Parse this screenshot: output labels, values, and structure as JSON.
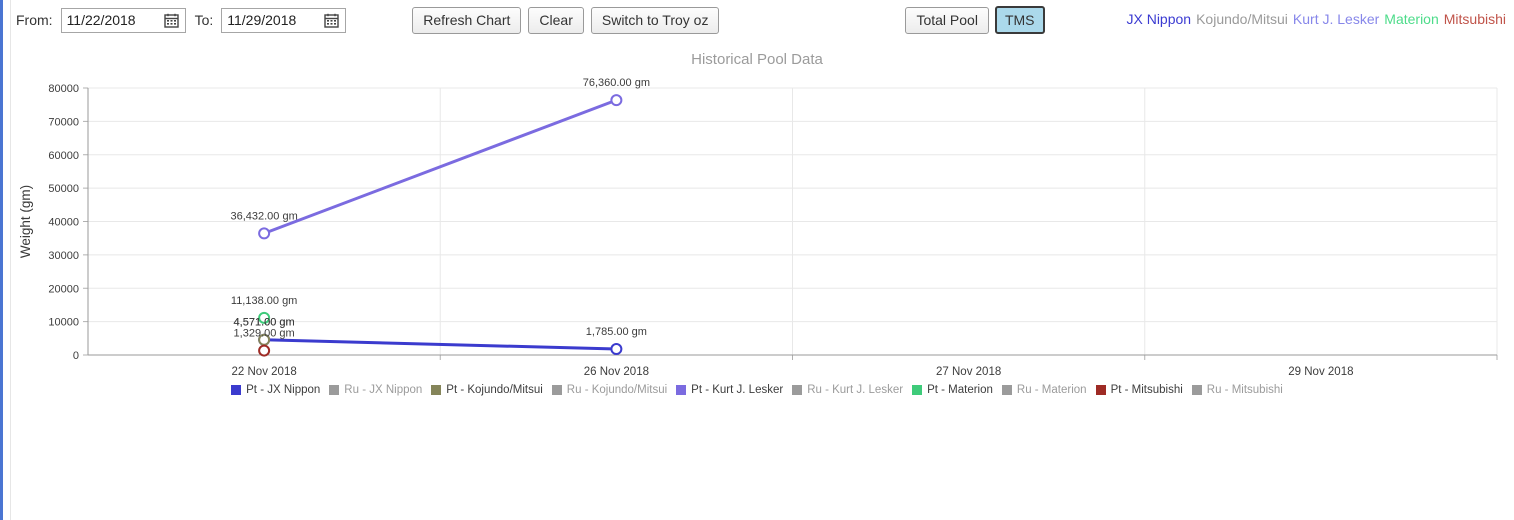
{
  "page": {
    "left_accent_color": "#4a75d2"
  },
  "toolbar": {
    "from_label": "From:",
    "from_value": "11/22/2018",
    "to_label": "To:",
    "to_value": "11/29/2018",
    "refresh_button": "Refresh Chart",
    "clear_button": "Clear",
    "troy_button": "Switch to Troy oz",
    "total_pool_button": "Total Pool",
    "tms_button": "TMS",
    "tms_active_color": "#abd9eb",
    "companies": [
      {
        "name": "JX Nippon",
        "color": "#3b3bd2"
      },
      {
        "name": "Kojundo/Mitsui",
        "color": "#9a9a9a"
      },
      {
        "name": "Kurt J. Lesker",
        "color": "#8787ea"
      },
      {
        "name": "Materion",
        "color": "#4ddc8a"
      },
      {
        "name": "Mitsubishi",
        "color": "#c0544a"
      }
    ]
  },
  "chart_data": {
    "type": "line",
    "title": "Historical Pool Data",
    "xlabel": "",
    "ylabel": "Weight (gm)",
    "ylim": [
      0,
      80000
    ],
    "ytick_interval": 10000,
    "grid": true,
    "legend_position": "bottom",
    "categories": [
      "22 Nov 2018",
      "26 Nov 2018",
      "27 Nov 2018",
      "29 Nov 2018"
    ],
    "series": [
      {
        "name": "Pt - JX Nippon",
        "color": "#3b3bce",
        "visible": true,
        "points": [
          {
            "x": "22 Nov 2018",
            "y": 4571,
            "label": "4,571.00 gm"
          },
          {
            "x": "26 Nov 2018",
            "y": 1785,
            "label": "1,785.00 gm"
          }
        ]
      },
      {
        "name": "Ru - JX Nippon",
        "color": "#999999",
        "visible": false,
        "points": []
      },
      {
        "name": "Pt - Kojundo/Mitsui",
        "color": "#85855a",
        "visible": true,
        "points": [
          {
            "x": "22 Nov 2018",
            "y": 4571,
            "label": "4,571.00 gm"
          }
        ]
      },
      {
        "name": "Ru - Kojundo/Mitsui",
        "color": "#999999",
        "visible": false,
        "points": []
      },
      {
        "name": "Pt - Kurt J. Lesker",
        "color": "#7b6be0",
        "visible": true,
        "points": [
          {
            "x": "22 Nov 2018",
            "y": 36432,
            "label": "36,432.00 gm"
          },
          {
            "x": "26 Nov 2018",
            "y": 76360,
            "label": "76,360.00 gm"
          }
        ]
      },
      {
        "name": "Ru - Kurt J. Lesker",
        "color": "#999999",
        "visible": false,
        "points": []
      },
      {
        "name": "Pt - Materion",
        "color": "#3ecb7a",
        "visible": true,
        "points": [
          {
            "x": "22 Nov 2018",
            "y": 11138,
            "label": "11,138.00 gm"
          }
        ]
      },
      {
        "name": "Ru - Materion",
        "color": "#999999",
        "visible": false,
        "points": []
      },
      {
        "name": "Pt - Mitsubishi",
        "color": "#9e2b25",
        "visible": true,
        "points": [
          {
            "x": "22 Nov 2018",
            "y": 1329,
            "label": "1,329.00 gm"
          }
        ]
      },
      {
        "name": "Ru - Mitsubishi",
        "color": "#999999",
        "visible": false,
        "points": []
      }
    ]
  }
}
